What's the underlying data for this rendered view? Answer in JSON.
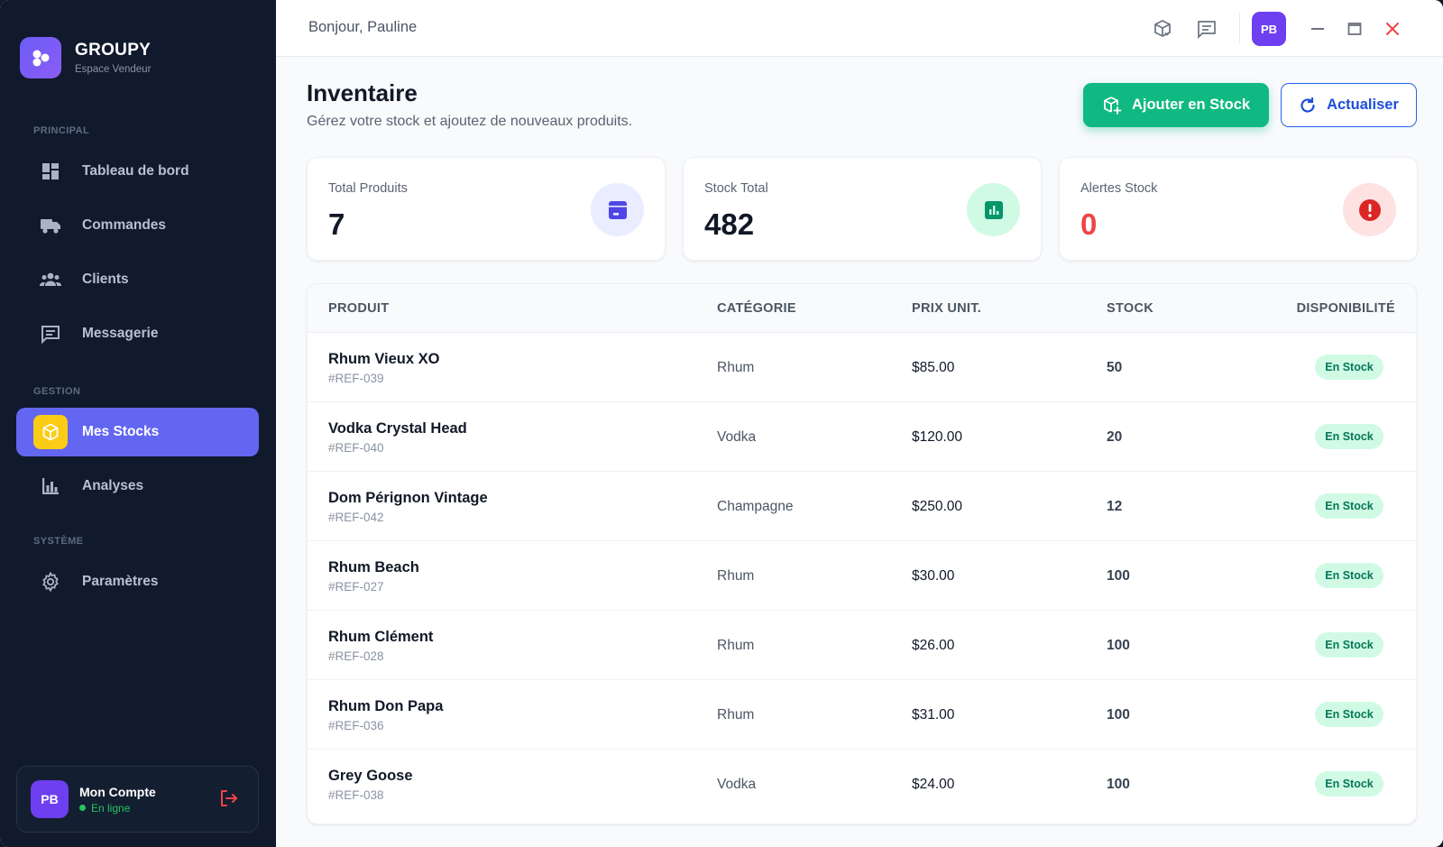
{
  "brand": {
    "name": "GROUPY",
    "subtitle": "Espace Vendeur"
  },
  "sidebar": {
    "sections": [
      {
        "label": "PRINCIPAL"
      },
      {
        "label": "GESTION"
      },
      {
        "label": "SYSTÈME"
      }
    ],
    "items": [
      {
        "label": "Tableau de bord",
        "icon": "dashboard-icon"
      },
      {
        "label": "Commandes",
        "icon": "truck-icon"
      },
      {
        "label": "Clients",
        "icon": "people-icon"
      },
      {
        "label": "Messagerie",
        "icon": "message-icon"
      },
      {
        "label": "Mes Stocks",
        "icon": "box-icon",
        "active": true
      },
      {
        "label": "Analyses",
        "icon": "bar-chart-icon"
      },
      {
        "label": "Paramètres",
        "icon": "gear-icon"
      }
    ],
    "account": {
      "initials": "PB",
      "name": "Mon Compte",
      "status": "En ligne"
    }
  },
  "topbar": {
    "greeting": "Bonjour, Pauline",
    "avatar_initials": "PB"
  },
  "page": {
    "title": "Inventaire",
    "subtitle": "Gérez votre stock et ajoutez de nouveaux produits.",
    "add_button": "Ajouter en Stock",
    "refresh_button": "Actualiser"
  },
  "stats": [
    {
      "label": "Total Produits",
      "value": "7"
    },
    {
      "label": "Stock Total",
      "value": "482"
    },
    {
      "label": "Alertes Stock",
      "value": "0"
    }
  ],
  "table": {
    "headers": [
      "PRODUIT",
      "CATÉGORIE",
      "PRIX UNIT.",
      "STOCK",
      "DISPONIBILITÉ"
    ],
    "rows": [
      {
        "name": "Rhum Vieux XO",
        "ref": "#REF-039",
        "category": "Rhum",
        "price": "$85.00",
        "stock": "50",
        "status": "En Stock"
      },
      {
        "name": "Vodka Crystal Head",
        "ref": "#REF-040",
        "category": "Vodka",
        "price": "$120.00",
        "stock": "20",
        "status": "En Stock"
      },
      {
        "name": "Dom Pérignon Vintage",
        "ref": "#REF-042",
        "category": "Champagne",
        "price": "$250.00",
        "stock": "12",
        "status": "En Stock"
      },
      {
        "name": "Rhum Beach",
        "ref": "#REF-027",
        "category": "Rhum",
        "price": "$30.00",
        "stock": "100",
        "status": "En Stock"
      },
      {
        "name": "Rhum Clément",
        "ref": "#REF-028",
        "category": "Rhum",
        "price": "$26.00",
        "stock": "100",
        "status": "En Stock"
      },
      {
        "name": "Rhum Don Papa",
        "ref": "#REF-036",
        "category": "Rhum",
        "price": "$31.00",
        "stock": "100",
        "status": "En Stock"
      },
      {
        "name": "Grey Goose",
        "ref": "#REF-038",
        "category": "Vodka",
        "price": "$24.00",
        "stock": "100",
        "status": "En Stock"
      }
    ]
  },
  "colors": {
    "accent": "#6366f1",
    "success": "#10b981",
    "danger": "#ef4444",
    "sidebar_bg": "#111a2c"
  }
}
